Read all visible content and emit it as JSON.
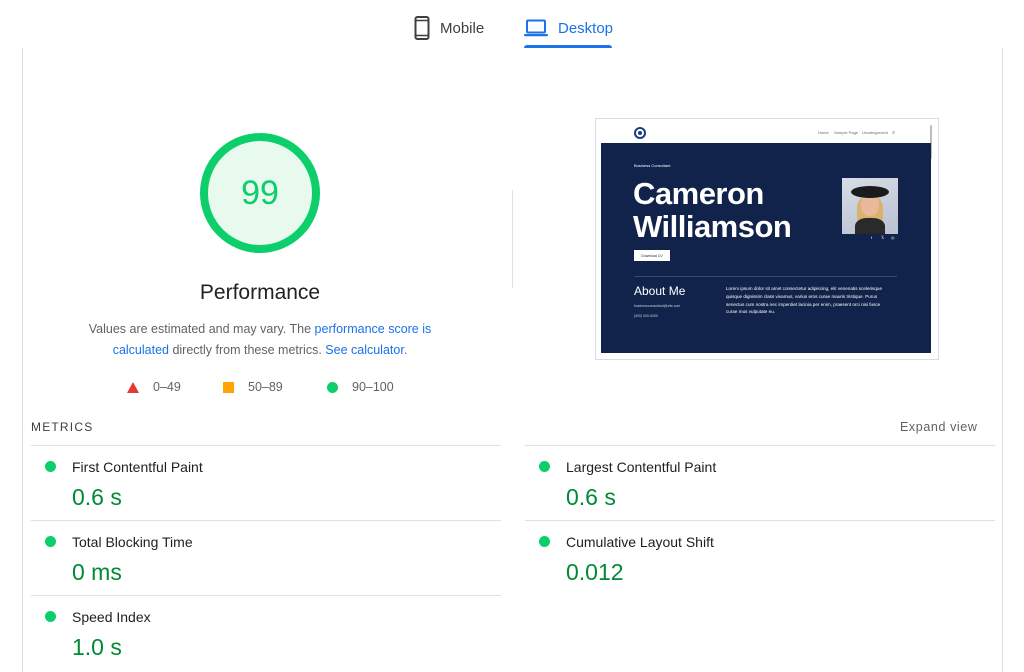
{
  "tabs": [
    {
      "label": "Mobile",
      "icon": "smartphone-icon",
      "active": false
    },
    {
      "label": "Desktop",
      "icon": "laptop-icon",
      "active": true
    }
  ],
  "gauge": {
    "score": "99",
    "score_fraction": 0.99,
    "title": "Performance",
    "color": "#0cce6b",
    "description_prefix": "Values are estimated and may vary. The ",
    "link_score": "performance score is calculated",
    "description_middle": " directly from these metrics. ",
    "link_calculator": "See calculator",
    "description_suffix": "."
  },
  "legend": [
    {
      "range": "0–49",
      "shape": "triangle",
      "color": "#e53935"
    },
    {
      "range": "50–89",
      "shape": "square",
      "color": "#ffa400"
    },
    {
      "range": "90–100",
      "shape": "circle",
      "color": "#0cce6b"
    }
  ],
  "screenshot": {
    "nav": [
      "Home",
      "Sample Page",
      "Uncategorized"
    ],
    "eyebrow": "Business Consultant",
    "name_line1": "Cameron",
    "name_line2": "Williamson",
    "button": "Download CV",
    "social": [
      "f",
      "𝕏",
      "◎"
    ],
    "about_title": "About Me",
    "email": "businessconsultant@site.com",
    "phone": "(000) 000-0000",
    "body": "Lorem ipsum dolor sit amet consectetur adipiscing, elit venenatis scelerisque quisque dignissim class vivamus, varius eros curae mauris tristique. Purus senectus cum nostra nec imperdiet lacinia per enim, praesent orci nisi fusce curae mus vulputate eu."
  },
  "metrics": {
    "title": "METRICS",
    "expand_label": "Expand view",
    "items": [
      {
        "name": "First Contentful Paint",
        "value": "0.6 s"
      },
      {
        "name": "Largest Contentful Paint",
        "value": "0.6 s"
      },
      {
        "name": "Total Blocking Time",
        "value": "0 ms"
      },
      {
        "name": "Cumulative Layout Shift",
        "value": "0.012"
      },
      {
        "name": "Speed Index",
        "value": "1.0 s"
      }
    ]
  },
  "colors": {
    "accent": "#1a73e8",
    "pass": "#0cce6b",
    "pass_text": "#008a36",
    "average": "#ffa400",
    "fail": "#e53935"
  }
}
